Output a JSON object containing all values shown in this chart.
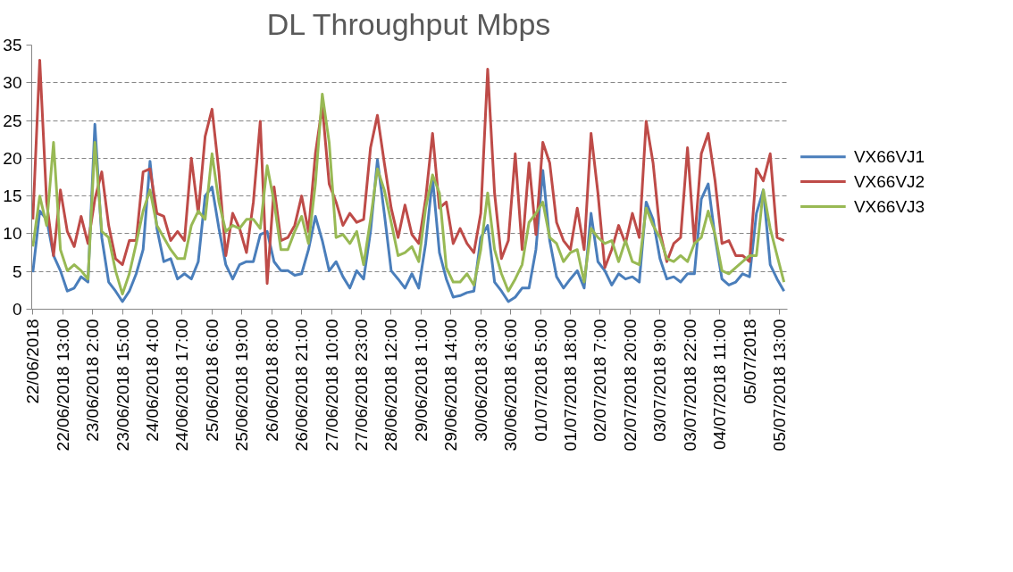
{
  "chart_data": {
    "type": "line",
    "title": "DL Throughput Mbps",
    "x": [
      "2018-06-22T00:00",
      "2018-06-22T03:00",
      "2018-06-22T06:00",
      "2018-06-22T09:00",
      "2018-06-22T12:00",
      "2018-06-22T15:00",
      "2018-06-22T18:00",
      "2018-06-22T21:00",
      "2018-06-23T00:00",
      "2018-06-23T03:00",
      "2018-06-23T06:00",
      "2018-06-23T09:00",
      "2018-06-23T12:00",
      "2018-06-23T15:00",
      "2018-06-23T18:00",
      "2018-06-23T21:00",
      "2018-06-24T00:00",
      "2018-06-24T03:00",
      "2018-06-24T06:00",
      "2018-06-24T09:00",
      "2018-06-24T12:00",
      "2018-06-24T15:00",
      "2018-06-24T18:00",
      "2018-06-24T21:00",
      "2018-06-25T00:00",
      "2018-06-25T03:00",
      "2018-06-25T06:00",
      "2018-06-25T09:00",
      "2018-06-25T12:00",
      "2018-06-25T15:00",
      "2018-06-25T18:00",
      "2018-06-25T21:00",
      "2018-06-26T00:00",
      "2018-06-26T03:00",
      "2018-06-26T06:00",
      "2018-06-26T09:00",
      "2018-06-26T12:00",
      "2018-06-26T15:00",
      "2018-06-26T18:00",
      "2018-06-26T21:00",
      "2018-06-27T00:00",
      "2018-06-27T03:00",
      "2018-06-27T06:00",
      "2018-06-27T09:00",
      "2018-06-27T12:00",
      "2018-06-27T15:00",
      "2018-06-27T18:00",
      "2018-06-27T21:00",
      "2018-06-28T00:00",
      "2018-06-28T03:00",
      "2018-06-28T06:00",
      "2018-06-28T09:00",
      "2018-06-28T12:00",
      "2018-06-28T15:00",
      "2018-06-28T18:00",
      "2018-06-28T21:00",
      "2018-06-29T00:00",
      "2018-06-29T03:00",
      "2018-06-29T06:00",
      "2018-06-29T09:00",
      "2018-06-29T12:00",
      "2018-06-29T15:00",
      "2018-06-29T18:00",
      "2018-06-29T21:00",
      "2018-06-30T00:00",
      "2018-06-30T03:00",
      "2018-06-30T06:00",
      "2018-06-30T09:00",
      "2018-06-30T12:00",
      "2018-06-30T15:00",
      "2018-06-30T18:00",
      "2018-06-30T21:00",
      "2018-07-01T00:00",
      "2018-07-01T03:00",
      "2018-07-01T06:00",
      "2018-07-01T09:00",
      "2018-07-01T12:00",
      "2018-07-01T15:00",
      "2018-07-01T18:00",
      "2018-07-01T21:00",
      "2018-07-02T00:00",
      "2018-07-02T03:00",
      "2018-07-02T06:00",
      "2018-07-02T09:00",
      "2018-07-02T12:00",
      "2018-07-02T15:00",
      "2018-07-02T18:00",
      "2018-07-02T21:00",
      "2018-07-03T00:00",
      "2018-07-03T03:00",
      "2018-07-03T06:00",
      "2018-07-03T09:00",
      "2018-07-03T12:00",
      "2018-07-03T15:00",
      "2018-07-03T18:00",
      "2018-07-03T21:00",
      "2018-07-04T00:00",
      "2018-07-04T03:00",
      "2018-07-04T06:00",
      "2018-07-04T09:00",
      "2018-07-04T12:00",
      "2018-07-04T15:00",
      "2018-07-04T18:00",
      "2018-07-04T21:00",
      "2018-07-05T00:00",
      "2018-07-05T03:00",
      "2018-07-05T06:00",
      "2018-07-05T09:00",
      "2018-07-05T12:00",
      "2018-07-05T15:00"
    ],
    "xlim": [
      "2018-06-21T23:30",
      "2018-07-05T16:30"
    ],
    "xticks": [
      {
        "value": "2018-06-22T00:00",
        "label": "22/06/2018"
      },
      {
        "value": "2018-06-22T13:00",
        "label": "22/06/2018 13:00"
      },
      {
        "value": "2018-06-23T02:00",
        "label": "23/06/2018 2:00"
      },
      {
        "value": "2018-06-23T15:00",
        "label": "23/06/2018 15:00"
      },
      {
        "value": "2018-06-24T04:00",
        "label": "24/06/2018 4:00"
      },
      {
        "value": "2018-06-24T17:00",
        "label": "24/06/2018 17:00"
      },
      {
        "value": "2018-06-25T06:00",
        "label": "25/06/2018 6:00"
      },
      {
        "value": "2018-06-25T19:00",
        "label": "25/06/2018 19:00"
      },
      {
        "value": "2018-06-26T08:00",
        "label": "26/06/2018 8:00"
      },
      {
        "value": "2018-06-26T21:00",
        "label": "26/06/2018 21:00"
      },
      {
        "value": "2018-06-27T10:00",
        "label": "27/06/2018 10:00"
      },
      {
        "value": "2018-06-27T23:00",
        "label": "27/06/2018 23:00"
      },
      {
        "value": "2018-06-28T12:00",
        "label": "28/06/2018 12:00"
      },
      {
        "value": "2018-06-29T01:00",
        "label": "29/06/2018 1:00"
      },
      {
        "value": "2018-06-29T14:00",
        "label": "29/06/2018 14:00"
      },
      {
        "value": "2018-06-30T03:00",
        "label": "30/06/2018 3:00"
      },
      {
        "value": "2018-06-30T16:00",
        "label": "30/06/2018 16:00"
      },
      {
        "value": "2018-07-01T05:00",
        "label": "01/07/2018 5:00"
      },
      {
        "value": "2018-07-01T18:00",
        "label": "01/07/2018 18:00"
      },
      {
        "value": "2018-07-02T07:00",
        "label": "02/07/2018 7:00"
      },
      {
        "value": "2018-07-02T20:00",
        "label": "02/07/2018 20:00"
      },
      {
        "value": "2018-07-03T09:00",
        "label": "03/07/2018 9:00"
      },
      {
        "value": "2018-07-03T22:00",
        "label": "03/07/2018 22:00"
      },
      {
        "value": "2018-07-04T11:00",
        "label": "04/07/2018 11:00"
      },
      {
        "value": "2018-07-05T00:00",
        "label": "05/07/2018"
      },
      {
        "value": "2018-07-05T13:00",
        "label": "05/07/2018 13:00"
      }
    ],
    "ylim": [
      0,
      35
    ],
    "yticks": [
      0,
      5,
      10,
      15,
      20,
      25,
      30,
      35
    ],
    "grid": "y",
    "legend": "right",
    "line_style": "solid",
    "series": [
      {
        "name": "VX66VJ1",
        "color": "#4a7ebb",
        "values": [
          4.9,
          13,
          11.9,
          7.1,
          5.1,
          2.4,
          2.8,
          4.3,
          3.6,
          24.5,
          9.5,
          3.6,
          2.4,
          1.0,
          2.4,
          4.7,
          7.9,
          19.6,
          10.7,
          6.3,
          6.7,
          4.0,
          4.7,
          4.0,
          6.3,
          15.0,
          16.2,
          10.7,
          5.9,
          4.0,
          5.9,
          6.3,
          6.3,
          9.9,
          10.3,
          6.3,
          5.1,
          5.1,
          4.5,
          4.7,
          7.9,
          12.3,
          9.1,
          5.1,
          6.3,
          4.3,
          2.8,
          5.1,
          4.0,
          10.3,
          19.8,
          12.7,
          5.1,
          4.0,
          2.8,
          4.7,
          2.8,
          8.7,
          17.4,
          7.5,
          4.0,
          1.6,
          1.8,
          2.2,
          2.4,
          9.5,
          11.1,
          3.6,
          2.4,
          1.0,
          1.6,
          2.8,
          2.8,
          7.9,
          18.4,
          9.1,
          4.3,
          2.8,
          4.0,
          5.1,
          2.8,
          12.7,
          6.3,
          5.1,
          3.2,
          4.7,
          4.0,
          4.3,
          3.6,
          14.2,
          11.9,
          6.7,
          4.0,
          4.3,
          3.6,
          4.7,
          4.7,
          14.6,
          16.6,
          9.5,
          4.0,
          3.2,
          3.6,
          4.7,
          4.3,
          12.7,
          15.8,
          5.9,
          4.0,
          2.4
        ]
      },
      {
        "name": "VX66VJ2",
        "color": "#be4b48",
        "values": [
          11.9,
          33.0,
          14.2,
          7.1,
          15.8,
          10.3,
          8.3,
          12.3,
          8.7,
          14.6,
          18.2,
          11.1,
          6.7,
          5.9,
          9.1,
          9.1,
          18.2,
          18.6,
          12.7,
          12.3,
          9.1,
          10.3,
          9.1,
          20,
          12.7,
          22.9,
          26.5,
          18.2,
          7.1,
          12.7,
          10.7,
          7.5,
          14.2,
          24.9,
          3.4,
          16.2,
          9.1,
          9.5,
          11.1,
          15.0,
          10.3,
          20.6,
          26.9,
          16.6,
          14.2,
          11.1,
          12.7,
          11.5,
          11.9,
          21.4,
          25.7,
          19.4,
          13.4,
          9.5,
          13.8,
          9.9,
          8.7,
          14.6,
          23.3,
          13.4,
          14.2,
          8.7,
          10.7,
          8.7,
          7.5,
          12.7,
          31.8,
          15.4,
          6.7,
          9.1,
          20.6,
          7.9,
          19.4,
          9.9,
          22.1,
          19.4,
          11.5,
          9.1,
          7.9,
          13.4,
          7.9,
          23.3,
          15.4,
          5.5,
          7.9,
          11.1,
          8.7,
          12.7,
          9.5,
          24.9,
          19.4,
          10.3,
          6.3,
          8.7,
          9.5,
          21.4,
          8.7,
          20.6,
          23.3,
          17.0,
          8.7,
          9.1,
          7.1,
          7.1,
          6.3,
          18.6,
          17.0,
          20.6,
          9.5,
          9.1
        ]
      },
      {
        "name": "VX66VJ3",
        "color": "#98b954",
        "values": [
          8.3,
          15.0,
          11.1,
          22.1,
          7.9,
          5.1,
          5.9,
          5.1,
          4.0,
          22.1,
          10.3,
          9.5,
          5.1,
          2.0,
          4.7,
          8.7,
          13.0,
          15.8,
          11.1,
          9.5,
          7.9,
          6.7,
          6.7,
          11.1,
          13.0,
          11.9,
          20.6,
          14.2,
          10.3,
          11.1,
          10.7,
          11.9,
          11.9,
          10.7,
          19.0,
          14.2,
          7.9,
          7.9,
          10.3,
          12.3,
          8.7,
          16.6,
          28.5,
          22.1,
          9.5,
          9.9,
          8.7,
          10.3,
          5.9,
          11.9,
          18.6,
          15.8,
          11.5,
          7.1,
          7.5,
          8.3,
          6.3,
          13.4,
          17.8,
          15.4,
          5.5,
          3.6,
          3.6,
          4.7,
          3.2,
          7.9,
          15.4,
          7.9,
          4.7,
          2.4,
          4.0,
          5.9,
          11.5,
          12.7,
          14.2,
          9.5,
          8.7,
          6.3,
          7.5,
          7.9,
          3.6,
          10.7,
          9.5,
          8.7,
          9.1,
          6.3,
          9.1,
          6.3,
          5.9,
          13.4,
          11.1,
          9.5,
          6.7,
          6.3,
          7.1,
          6.3,
          8.7,
          9.5,
          13.0,
          9.9,
          5.1,
          4.7,
          5.5,
          6.3,
          7.1,
          7.1,
          15.8,
          10.7,
          7.1,
          3.6
        ]
      }
    ]
  }
}
